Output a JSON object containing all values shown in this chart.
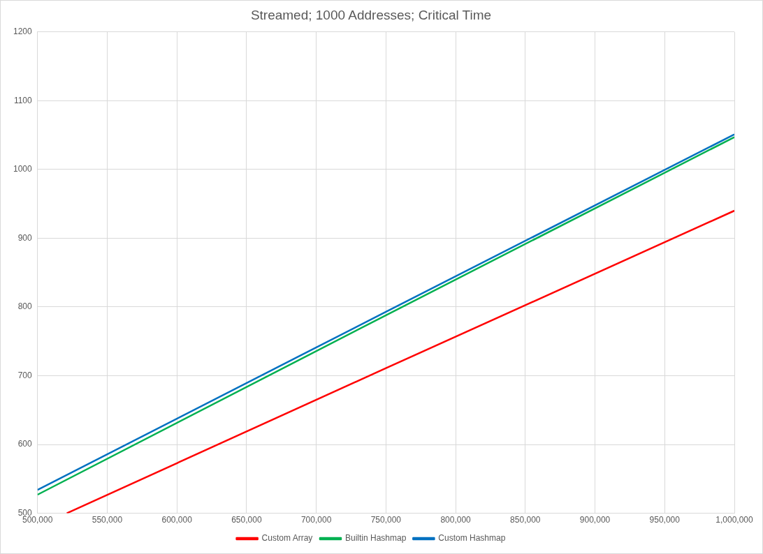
{
  "chart_data": {
    "type": "line",
    "title": "Streamed; 1000 Addresses; Critical Time",
    "xlim": [
      500000,
      1000000
    ],
    "xticks": [
      {
        "value": 500000,
        "label": "500,000"
      },
      {
        "value": 550000,
        "label": "550,000"
      },
      {
        "value": 600000,
        "label": "600,000"
      },
      {
        "value": 650000,
        "label": "650,000"
      },
      {
        "value": 700000,
        "label": "700,000"
      },
      {
        "value": 750000,
        "label": "750,000"
      },
      {
        "value": 800000,
        "label": "800,000"
      },
      {
        "value": 850000,
        "label": "850,000"
      },
      {
        "value": 900000,
        "label": "900,000"
      },
      {
        "value": 950000,
        "label": "950,000"
      },
      {
        "value": 1000000,
        "label": "1,000,000"
      }
    ],
    "ylim": [
      500,
      1200
    ],
    "yticks": [
      500,
      600,
      700,
      800,
      900,
      1000,
      1100,
      1200
    ],
    "series": [
      {
        "name": "Custom Array",
        "color": "#ff0000",
        "x": [
          521000,
          750000,
          1000000
        ],
        "values": [
          500,
          711,
          940
        ]
      },
      {
        "name": "Builtin Hashmap",
        "color": "#00b050",
        "x": [
          500000,
          750000,
          1000000
        ],
        "values": [
          527,
          788,
          1047
        ]
      },
      {
        "name": "Custom Hashmap",
        "color": "#0070c0",
        "x": [
          500000,
          750000,
          1000000
        ],
        "values": [
          534,
          793,
          1051
        ]
      }
    ],
    "grid": true,
    "legend": "bottom",
    "marker": "none",
    "line_style": "solid"
  }
}
